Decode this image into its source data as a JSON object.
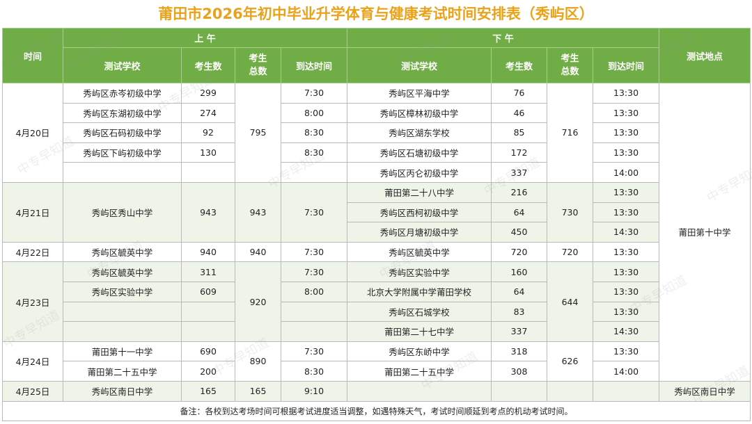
{
  "title": "莆田市2026年初中毕业升学体育与健康考试时间安排表（秀屿区）",
  "header": {
    "time": "时间",
    "am": "上 午",
    "pm": "下 午",
    "location": "测试地点",
    "school": "测试学校",
    "count": "考生数",
    "total_line1": "考生",
    "total_line2": "总数",
    "arrive": "到达时间"
  },
  "rows": [
    {
      "date": "4月20日",
      "am_school": "秀屿区赤岑初级中学",
      "am_count": "299",
      "am_total": "795",
      "am_arrive": "7:30",
      "pm_school": "秀屿区平海中学",
      "pm_count": "76",
      "pm_total": "716",
      "pm_arrive": "13:30",
      "location": "莆田第十中学"
    },
    {
      "am_school": "秀屿区东湖初级中学",
      "am_count": "274",
      "am_arrive": "8:00",
      "pm_school": "秀屿区樟林初级中学",
      "pm_count": "46",
      "pm_arrive": "13:30"
    },
    {
      "am_school": "秀屿区石码初级中学",
      "am_count": "92",
      "am_arrive": "8:30",
      "pm_school": "秀屿区湖东学校",
      "pm_count": "85",
      "pm_arrive": "13:30"
    },
    {
      "am_school": "秀屿区下屿初级中学",
      "am_count": "130",
      "am_arrive": "8:30",
      "pm_school": "秀屿区石塘初级中学",
      "pm_count": "172",
      "pm_arrive": "13:30"
    },
    {
      "am_school": "",
      "am_count": "",
      "am_arrive": "",
      "pm_school": "秀屿区丙仑初级中学",
      "pm_count": "337",
      "pm_arrive": "14:00"
    },
    {
      "date": "4月21日",
      "am_school": "秀屿区秀山中学",
      "am_count": "943",
      "am_total": "943",
      "am_arrive": "7:30",
      "pm_school": "莆田第二十八中学",
      "pm_count": "216",
      "pm_total": "730",
      "pm_arrive": "13:30"
    },
    {
      "pm_school": "秀屿区西柯初级中学",
      "pm_count": "64",
      "pm_arrive": "13:30"
    },
    {
      "pm_school": "秀屿区月塘初级中学",
      "pm_count": "450",
      "pm_arrive": "14:30"
    },
    {
      "date": "4月22日",
      "am_school": "秀屿区毓英中学",
      "am_count": "940",
      "am_total": "940",
      "am_arrive": "7:30",
      "pm_school": "秀屿区毓英中学",
      "pm_count": "720",
      "pm_total": "720",
      "pm_arrive": "13:30"
    },
    {
      "date": "4月23日",
      "am_school": "秀屿区毓英中学",
      "am_count": "311",
      "am_total": "920",
      "am_arrive": "7:30",
      "pm_school": "秀屿区实验中学",
      "pm_count": "160",
      "pm_total": "644",
      "pm_arrive": "13:30"
    },
    {
      "am_school": "秀屿区实验中学",
      "am_count": "609",
      "am_arrive": "8:00",
      "pm_school": "北京大学附属中学莆田学校",
      "pm_count": "64",
      "pm_arrive": "13:30"
    },
    {
      "am_school": "",
      "am_count": "",
      "am_arrive": "",
      "pm_school": "秀屿区石城学校",
      "pm_count": "83",
      "pm_arrive": "13:30"
    },
    {
      "am_school": "",
      "am_count": "",
      "am_arrive": "",
      "pm_school": "莆田第二十七中学",
      "pm_count": "337",
      "pm_arrive": "14:30"
    },
    {
      "date": "4月24日",
      "am_school": "莆田第十一中学",
      "am_count": "690",
      "am_total": "890",
      "am_arrive": "7:30",
      "pm_school": "秀屿区东峤中学",
      "pm_count": "318",
      "pm_total": "626",
      "pm_arrive": "13:30"
    },
    {
      "am_school": "莆田第二十五中学",
      "am_count": "200",
      "am_arrive": "8:30",
      "pm_school": "莆田第二十五中学",
      "pm_count": "308",
      "pm_arrive": "14:00"
    },
    {
      "date": "4月25日",
      "am_school": "秀屿区南日中学",
      "am_count": "165",
      "am_total": "165",
      "am_arrive": "9:10",
      "pm_school": "",
      "pm_count": "",
      "pm_total": "",
      "pm_arrive": "",
      "location": "秀屿区南日中学"
    }
  ],
  "note": "备注：各校到达考场时间可根据考试进度适当调整，如遇特殊天气，考试时间顺延到考点的机动考试时间。",
  "watermark": "中专早知道",
  "colors": {
    "title": "#e9a21a",
    "header_bg": "#70ad47",
    "alt_row": "#eef5e8"
  }
}
